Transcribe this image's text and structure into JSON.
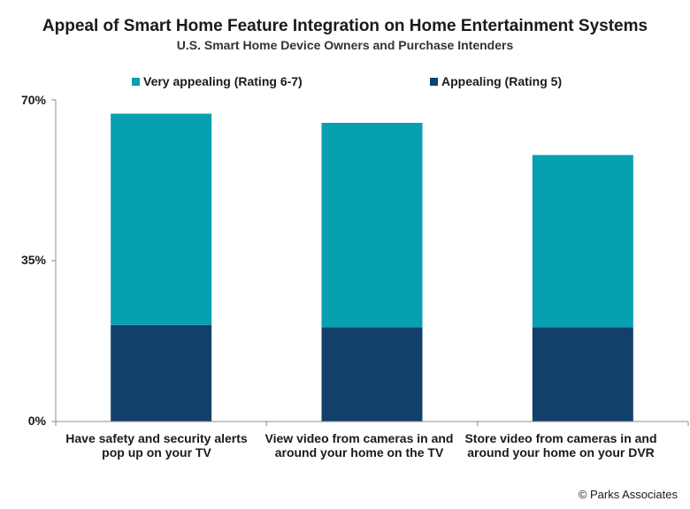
{
  "title": "Appeal of Smart Home Feature Integration on Home Entertainment Systems",
  "subtitle": "U.S. Smart Home Device Owners and Purchase Intenders",
  "credit": "© Parks Associates",
  "colors": {
    "very_appealing": "#06A0B0",
    "appealing": "#12406A",
    "axis": "#8c8c8c"
  },
  "chart_data": {
    "type": "bar",
    "stacked": true,
    "title": "Appeal of Smart Home Feature Integration on Home Entertainment Systems",
    "subtitle": "U.S. Smart Home Device Owners and Purchase Intenders",
    "categories": [
      "Have safety and security alerts pop up on your TV",
      "View video from cameras in and around your home on the TV",
      "Store video from cameras in and around your home on your DVR"
    ],
    "series": [
      {
        "name": "Appealing (Rating 5)",
        "values": [
          21,
          20.5,
          20.5
        ]
      },
      {
        "name": "Very appealing (Rating 6-7)",
        "values": [
          46,
          44.5,
          37.5
        ]
      }
    ],
    "ylim": [
      0,
      70
    ],
    "yticks": [
      "0%",
      "35%",
      "70%"
    ],
    "legend_position": "top",
    "grid": false
  }
}
